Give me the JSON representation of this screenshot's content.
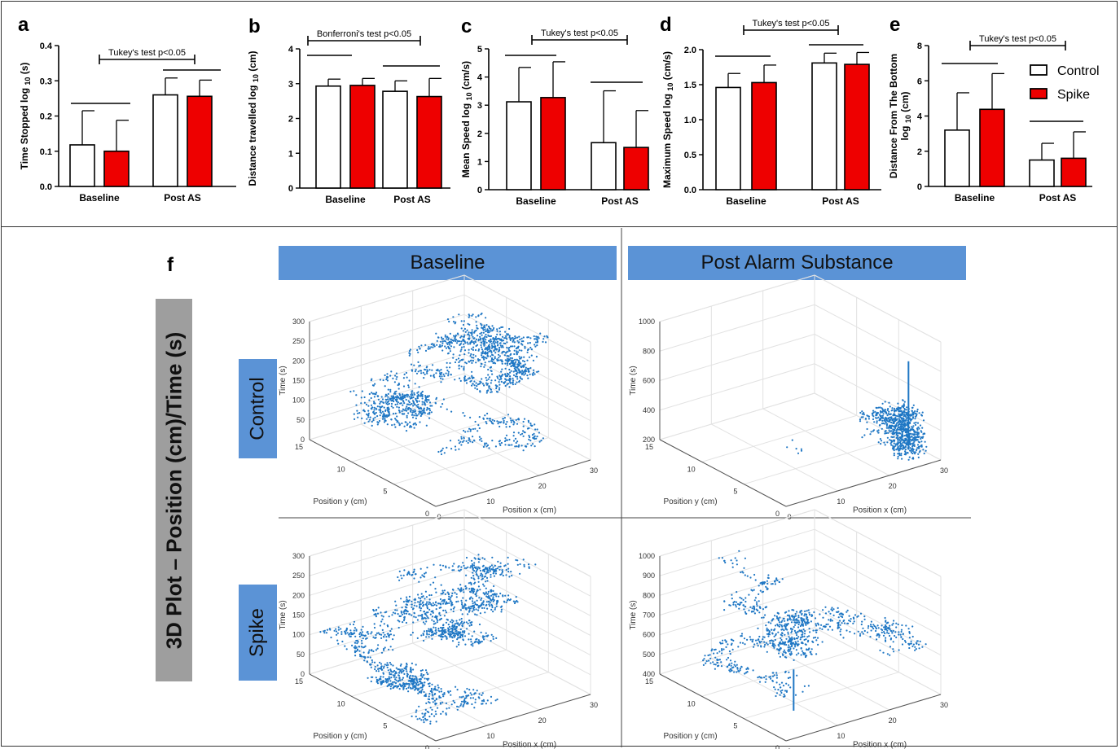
{
  "chart_data": [
    {
      "panel": "a",
      "type": "bar",
      "categories": [
        "Baseline",
        "Post AS"
      ],
      "series": [
        {
          "name": "Control",
          "values": [
            0.118,
            0.26
          ],
          "err": [
            0.097,
            0.048
          ]
        },
        {
          "name": "Spike",
          "values": [
            0.1,
            0.256
          ],
          "err": [
            0.088,
            0.046
          ]
        }
      ],
      "ylabel": "Time Stopped log",
      "ylabel_sub": "10",
      "ylabel_unit": "(s)",
      "ylim": [
        0,
        0.4
      ],
      "yticks": [
        "0.0",
        "0.1",
        "0.2",
        "0.3",
        "0.4"
      ],
      "annotation": "Tukey's test p<0.05"
    },
    {
      "panel": "b",
      "type": "bar",
      "categories": [
        "Baseline",
        "Post AS"
      ],
      "series": [
        {
          "name": "Control",
          "values": [
            2.93,
            2.78
          ],
          "err": [
            0.2,
            0.3
          ]
        },
        {
          "name": "Spike",
          "values": [
            2.95,
            2.63
          ],
          "err": [
            0.2,
            0.52
          ]
        }
      ],
      "ylabel": "Distance travelled log",
      "ylabel_sub": "10",
      "ylabel_unit": "(cm)",
      "ylim": [
        0,
        4
      ],
      "yticks": [
        "0",
        "1",
        "2",
        "3",
        "4"
      ],
      "annotation": "Bonferroni's test p<0.05"
    },
    {
      "panel": "c",
      "type": "bar",
      "categories": [
        "Baseline",
        "Post AS"
      ],
      "series": [
        {
          "name": "Control",
          "values": [
            3.12,
            1.67
          ],
          "err": [
            1.22,
            1.84
          ]
        },
        {
          "name": "Spike",
          "values": [
            3.27,
            1.5
          ],
          "err": [
            1.27,
            1.31
          ]
        }
      ],
      "ylabel": "Mean Speed log",
      "ylabel_sub": "10",
      "ylabel_unit": "(cm/s)",
      "ylim": [
        0,
        5
      ],
      "yticks": [
        "0",
        "1",
        "2",
        "3",
        "4",
        "5"
      ],
      "annotation": "Tukey's test p<0.05"
    },
    {
      "panel": "d",
      "type": "bar",
      "categories": [
        "Baseline",
        "Post AS"
      ],
      "series": [
        {
          "name": "Control",
          "values": [
            1.46,
            1.81
          ],
          "err": [
            0.2,
            0.14
          ]
        },
        {
          "name": "Spike",
          "values": [
            1.53,
            1.79
          ],
          "err": [
            0.25,
            0.17
          ]
        }
      ],
      "ylabel": "Maximum Speed log",
      "ylabel_sub": "10",
      "ylabel_unit": "(cm/s)",
      "ylim": [
        0,
        2
      ],
      "yticks": [
        "0.0",
        "0.5",
        "1.0",
        "1.5",
        "2.0"
      ],
      "annotation": "Tukey's test p<0.05"
    },
    {
      "panel": "e",
      "type": "bar",
      "categories": [
        "Baseline",
        "Post AS"
      ],
      "series": [
        {
          "name": "Control",
          "values": [
            3.2,
            1.5
          ],
          "err": [
            2.12,
            0.95
          ]
        },
        {
          "name": "Spike",
          "values": [
            4.38,
            1.6
          ],
          "err": [
            2.03,
            1.5
          ]
        }
      ],
      "ylabel": "Distance From The Bottom",
      "ylabel2": "log",
      "ylabel_sub": "10",
      "ylabel_unit": "(cm)",
      "ylim": [
        0,
        8
      ],
      "yticks": [
        "0",
        "2",
        "4",
        "6",
        "8"
      ],
      "annotation": "Tukey's test p<0.05",
      "legend": [
        "Control",
        "Spike"
      ]
    },
    {
      "panel": "f",
      "type": "scatter",
      "title": "3D Plot – Position (cm)/Time (s)",
      "columns": [
        "Baseline",
        "Post Alarm Substance"
      ],
      "rows": [
        "Control",
        "Spike"
      ],
      "plots": [
        {
          "zticks": [
            "0",
            "50",
            "100",
            "150",
            "200",
            "250",
            "300"
          ],
          "zlim": [
            0,
            300
          ]
        },
        {
          "zticks": [
            "200",
            "400",
            "600",
            "800",
            "1000"
          ],
          "zlim": [
            200,
            1000
          ]
        },
        {
          "zticks": [
            "0",
            "50",
            "100",
            "150",
            "200",
            "250",
            "300"
          ],
          "zlim": [
            0,
            300
          ]
        },
        {
          "zticks": [
            "400",
            "500",
            "600",
            "700",
            "800",
            "900",
            "1000"
          ],
          "zlim": [
            400,
            1000
          ]
        }
      ],
      "xlabel": "Position x (cm)",
      "ylabel": "Position y (cm)",
      "zlabel": "Time (s)",
      "xticks": [
        "0",
        "10",
        "20",
        "30"
      ],
      "yticks": [
        "0",
        "5",
        "10",
        "15"
      ]
    }
  ],
  "colors": {
    "control": "#ffffff",
    "spike": "#ee0000",
    "scatter": "#1f77c4",
    "box": "#5b93d6",
    "gray": "#9e9e9e"
  }
}
